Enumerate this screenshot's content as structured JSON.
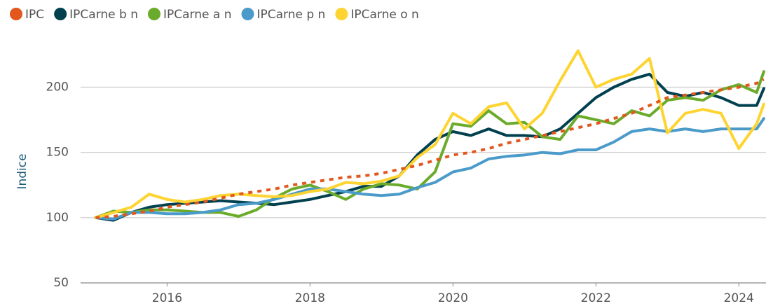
{
  "chart_data": {
    "type": "line",
    "y_label": "Indice",
    "x": [
      2015.0,
      2015.25,
      2015.5,
      2015.75,
      2016.0,
      2016.25,
      2016.5,
      2016.75,
      2017.0,
      2017.25,
      2017.5,
      2017.75,
      2018.0,
      2018.25,
      2018.5,
      2018.75,
      2019.0,
      2019.25,
      2019.5,
      2019.75,
      2020.0,
      2020.25,
      2020.5,
      2020.75,
      2021.0,
      2021.25,
      2021.5,
      2021.75,
      2022.0,
      2022.25,
      2022.5,
      2022.75,
      2023.0,
      2023.25,
      2023.5,
      2023.75,
      2024.0,
      2024.25,
      2024.35
    ],
    "series": [
      {
        "name": "IPC",
        "color": "#e2571e",
        "dashed": true,
        "values": [
          100,
          101,
          103,
          105,
          108,
          110,
          112,
          115,
          118,
          120,
          122,
          125,
          127,
          129,
          131,
          132,
          134,
          137,
          140,
          144,
          148,
          150,
          153,
          157,
          160,
          163,
          166,
          169,
          172,
          176,
          180,
          186,
          192,
          194,
          196,
          198,
          200,
          203,
          206
        ]
      },
      {
        "name": "IPCarne b n",
        "color": "#00404f",
        "values": [
          100,
          98,
          104,
          108,
          110,
          111,
          112,
          113,
          112,
          111,
          110,
          112,
          114,
          117,
          120,
          124,
          124,
          132,
          148,
          160,
          166,
          163,
          168,
          163,
          163,
          162,
          168,
          180,
          192,
          200,
          206,
          210,
          196,
          193,
          196,
          192,
          186,
          186,
          199
        ]
      },
      {
        "name": "IPCarne a n",
        "color": "#6bab2b",
        "values": [
          100,
          105,
          104,
          106,
          106,
          105,
          104,
          104,
          101,
          106,
          115,
          122,
          125,
          120,
          114,
          122,
          126,
          125,
          122,
          135,
          172,
          170,
          182,
          172,
          173,
          162,
          160,
          178,
          175,
          172,
          182,
          178,
          190,
          192,
          190,
          198,
          202,
          196,
          212
        ]
      },
      {
        "name": "IPCarne p n",
        "color": "#4b9bca",
        "values": [
          100,
          99,
          104,
          104,
          103,
          103,
          104,
          106,
          110,
          111,
          114,
          118,
          122,
          122,
          120,
          118,
          117,
          118,
          123,
          127,
          135,
          138,
          145,
          147,
          148,
          150,
          149,
          152,
          152,
          158,
          166,
          168,
          166,
          168,
          166,
          168,
          168,
          168,
          176
        ]
      },
      {
        "name": "IPCarne o n",
        "color": "#fdd431",
        "values": [
          100,
          104,
          108,
          118,
          114,
          112,
          114,
          117,
          118,
          117,
          116,
          117,
          120,
          122,
          127,
          126,
          128,
          132,
          146,
          156,
          180,
          172,
          185,
          188,
          168,
          180,
          205,
          228,
          200,
          206,
          210,
          222,
          165,
          180,
          183,
          180,
          153,
          172,
          187
        ]
      }
    ],
    "xlim": [
      2014.79,
      2024.38
    ],
    "xticks": [
      2016,
      2018,
      2020,
      2022,
      2024
    ],
    "ylim": [
      50,
      240
    ],
    "yticks": [
      50,
      100,
      150,
      200
    ],
    "grid": true,
    "legend": "top-left"
  }
}
